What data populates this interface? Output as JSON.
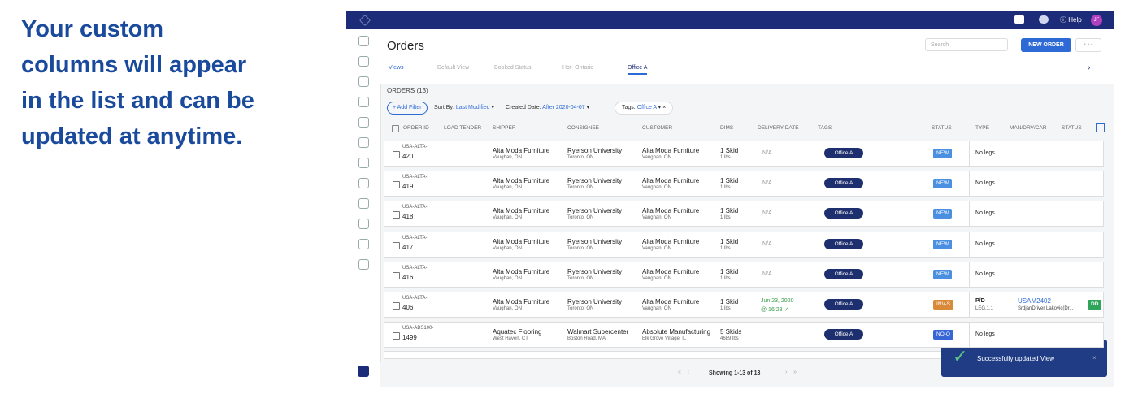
{
  "caption": [
    "Your custom",
    "columns will appear",
    "in the list and can be",
    "updated at anytime."
  ],
  "topbar": {
    "help": "Help",
    "avatar": "JF"
  },
  "header": {
    "title": "Orders",
    "search": "Search",
    "new_order": "NEW ORDER"
  },
  "views": [
    "Views",
    "Default View",
    "Booked Status",
    "Hot- Ontario",
    "Office A"
  ],
  "count": "ORDERS (13)",
  "filters": {
    "add": "+ Add Filter",
    "sort_label": "Sort By:",
    "sort_value": "Last Modified",
    "created_label": "Created Date:",
    "created_value": "After 2020-04-07",
    "tags_label": "Tags:",
    "tags_value": "Office A"
  },
  "columns": [
    "ORDER ID",
    "LOAD TENDER",
    "SHIPPER",
    "CONSIGNEE",
    "CUSTOMER",
    "DIMS",
    "DELIVERY DATE",
    "TAGS",
    "STATUS",
    "TYPE",
    "MAN/DRV/CAR",
    "STATUS"
  ],
  "rows": [
    {
      "id_prefix": "USA-ALTA-",
      "id": "420",
      "shipper": "Alta Moda Furniture",
      "shipper_loc": "Vaughan, ON",
      "consignee": "Ryerson University",
      "consignee_loc": "Toronto, ON",
      "customer": "Alta Moda Furniture",
      "customer_loc": "Vaughan, ON",
      "dims": "1 Skid",
      "weight": "1 lbs",
      "delivery": "N/A",
      "tag": "Office A",
      "status": "NEW",
      "type": "No legs"
    },
    {
      "id_prefix": "USA-ALTA-",
      "id": "419",
      "shipper": "Alta Moda Furniture",
      "shipper_loc": "Vaughan, ON",
      "consignee": "Ryerson University",
      "consignee_loc": "Toronto, ON",
      "customer": "Alta Moda Furniture",
      "customer_loc": "Vaughan, ON",
      "dims": "1 Skid",
      "weight": "1 lbs",
      "delivery": "N/A",
      "tag": "Office A",
      "status": "NEW",
      "type": "No legs"
    },
    {
      "id_prefix": "USA-ALTA-",
      "id": "418",
      "shipper": "Alta Moda Furniture",
      "shipper_loc": "Vaughan, ON",
      "consignee": "Ryerson University",
      "consignee_loc": "Toronto, ON",
      "customer": "Alta Moda Furniture",
      "customer_loc": "Vaughan, ON",
      "dims": "1 Skid",
      "weight": "1 lbs",
      "delivery": "N/A",
      "tag": "Office A",
      "status": "NEW",
      "type": "No legs"
    },
    {
      "id_prefix": "USA-ALTA-",
      "id": "417",
      "shipper": "Alta Moda Furniture",
      "shipper_loc": "Vaughan, ON",
      "consignee": "Ryerson University",
      "consignee_loc": "Toronto, ON",
      "customer": "Alta Moda Furniture",
      "customer_loc": "Vaughan, ON",
      "dims": "1 Skid",
      "weight": "1 lbs",
      "delivery": "N/A",
      "tag": "Office A",
      "status": "NEW",
      "type": "No legs"
    },
    {
      "id_prefix": "USA-ALTA-",
      "id": "416",
      "shipper": "Alta Moda Furniture",
      "shipper_loc": "Vaughan, ON",
      "consignee": "Ryerson University",
      "consignee_loc": "Toronto, ON",
      "customer": "Alta Moda Furniture",
      "customer_loc": "Vaughan, ON",
      "dims": "1 Skid",
      "weight": "1 lbs",
      "delivery": "N/A",
      "tag": "Office A",
      "status": "NEW",
      "type": "No legs"
    },
    {
      "id_prefix": "USA-ALTA-",
      "id": "406",
      "shipper": "Alta Moda Furniture",
      "shipper_loc": "Vaughan, ON",
      "consignee": "Ryerson University",
      "consignee_loc": "Toronto, ON",
      "customer": "Alta Moda Furniture",
      "customer_loc": "Vaughan, ON",
      "dims": "1 Skid",
      "weight": "1 lbs",
      "delivery": "Jun 23, 2020",
      "delivery_time": "@ 16:28 ✓",
      "tag": "Office A",
      "status": "INV-S",
      "type": "P/D",
      "leg": "LEG.1.1",
      "man": "USAM2402",
      "driver": "SrdjanDriver Lakovic(Dr...",
      "status2": "DD"
    },
    {
      "id_prefix": "USA-ABS100-",
      "id": "1499",
      "shipper": "Aquatec Flooring",
      "shipper_loc": "West Haven, CT",
      "consignee": "Walmart Supercenter",
      "consignee_loc": "Boston Road, MA",
      "customer": "Absolute Manufacturing",
      "customer_loc": "Elk Grove Village, IL",
      "dims": "5 Skids",
      "weight": "4689 lbs",
      "tag": "Office A",
      "status": "NO-Q",
      "type": "No legs"
    }
  ],
  "pagination": "Showing 1-13 of 13",
  "toast": "Successfully updated View"
}
